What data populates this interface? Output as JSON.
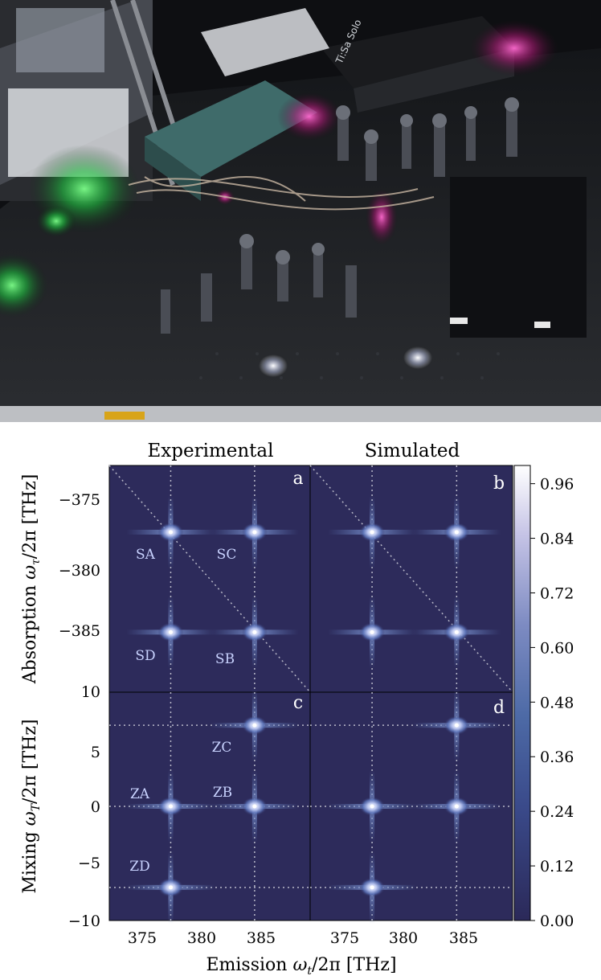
{
  "photo": {
    "description_labels": [
      "optical table",
      "lasers",
      "optics"
    ],
    "equipment_label": "Ti:Sa Solo"
  },
  "figure": {
    "column_titles": [
      "Experimental",
      "Simulated"
    ],
    "panel_letters": [
      "a",
      "b",
      "c",
      "d"
    ],
    "xlabel": "Emission ωt/2π [THz]",
    "ylabel_top": "Absorption ωτ/2π [THz]",
    "ylabel_bottom": "Mixing ωT/2π [THz]",
    "xticks": [
      "375",
      "380",
      "385"
    ],
    "yticks_top": [
      "−375",
      "−380",
      "−385"
    ],
    "yticks_bottom": [
      "10",
      "5",
      "0",
      "−5",
      "−10"
    ],
    "colorbar_ticks": [
      "0.96",
      "0.84",
      "0.72",
      "0.60",
      "0.48",
      "0.36",
      "0.24",
      "0.12",
      "0.00"
    ],
    "peak_labels_top": [
      "SA",
      "SC",
      "SD",
      "SB"
    ],
    "peak_labels_bottom": [
      "ZC",
      "ZA",
      "ZB",
      "ZD"
    ]
  },
  "chart_data": {
    "type": "heatmap",
    "panels": [
      {
        "id": "a",
        "title": "Experimental",
        "quantity": "Absorption vs Emission",
        "peaks": [
          {
            "label": "SA",
            "x": 377.2,
            "y": -377.0
          },
          {
            "label": "SC",
            "x": 384.3,
            "y": -377.0
          },
          {
            "label": "SD",
            "x": 377.2,
            "y": -384.5
          },
          {
            "label": "SB",
            "x": 384.3,
            "y": -384.5
          }
        ]
      },
      {
        "id": "b",
        "title": "Simulated",
        "quantity": "Absorption vs Emission",
        "peaks": [
          {
            "x": 377.2,
            "y": -377.0
          },
          {
            "x": 384.3,
            "y": -377.0
          },
          {
            "x": 377.2,
            "y": -384.5
          },
          {
            "x": 384.3,
            "y": -384.5
          }
        ]
      },
      {
        "id": "c",
        "title": "Experimental",
        "quantity": "Mixing vs Emission",
        "peaks": [
          {
            "label": "ZC",
            "x": 384.3,
            "y": 7.1
          },
          {
            "label": "ZA",
            "x": 377.2,
            "y": 0.0
          },
          {
            "label": "ZB",
            "x": 384.3,
            "y": 0.0
          },
          {
            "label": "ZD",
            "x": 377.2,
            "y": -7.1
          }
        ]
      },
      {
        "id": "d",
        "title": "Simulated",
        "quantity": "Mixing vs Emission",
        "peaks": [
          {
            "x": 384.3,
            "y": 7.1
          },
          {
            "x": 377.2,
            "y": 0.0
          },
          {
            "x": 384.3,
            "y": 0.0
          },
          {
            "x": 377.2,
            "y": -7.1
          }
        ]
      }
    ],
    "xlim": [
      372,
      389
    ],
    "ylim_top": [
      -372,
      -389
    ],
    "ylim_bottom": [
      -10,
      10
    ],
    "colorbar_range": [
      0.0,
      1.0
    ]
  }
}
